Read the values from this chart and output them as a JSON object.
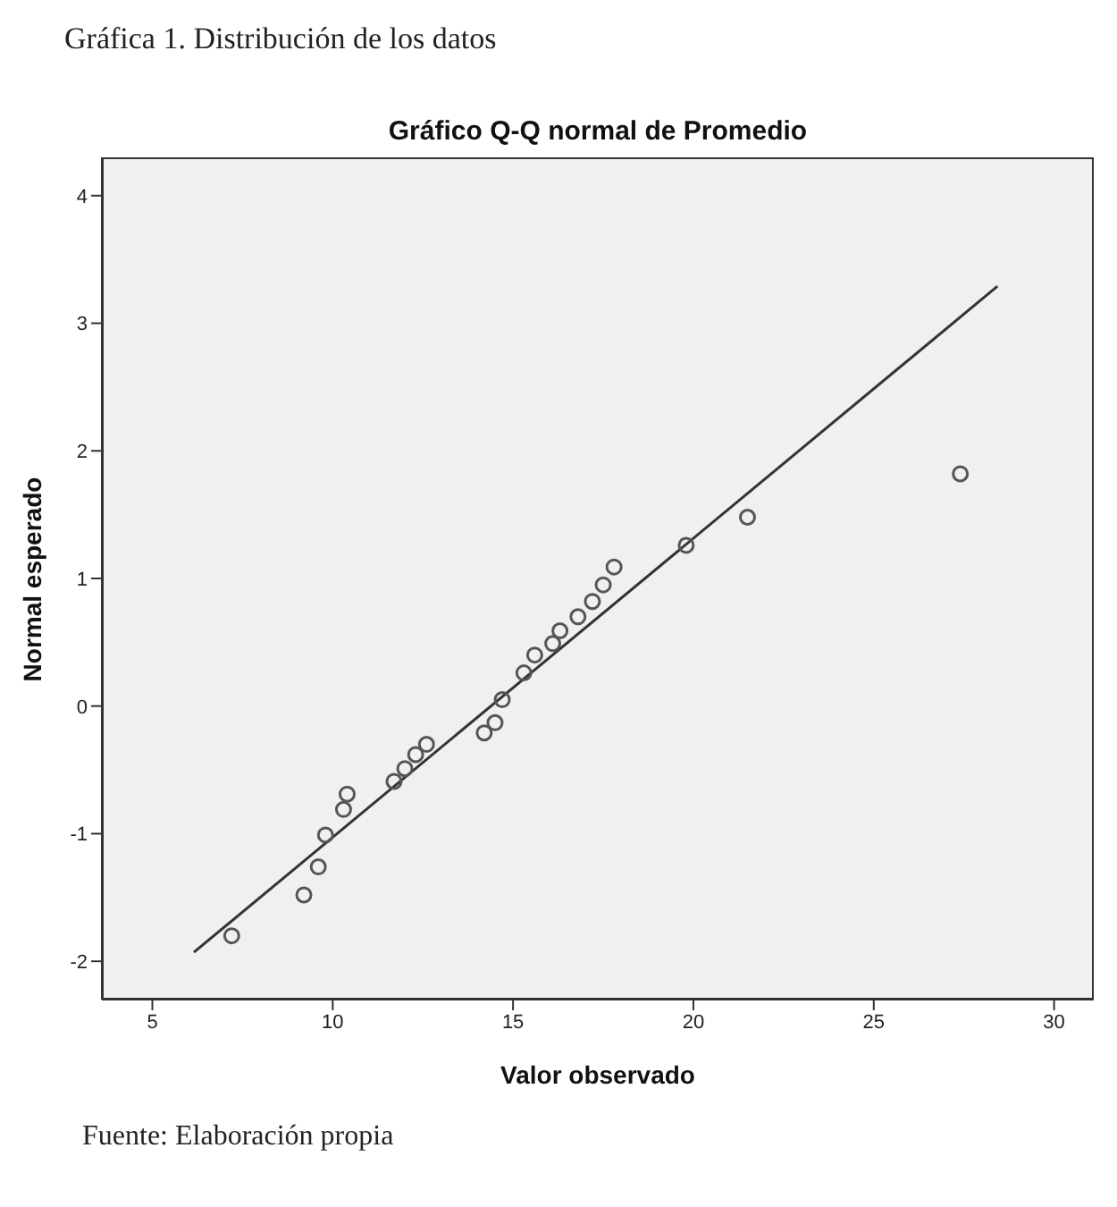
{
  "chart_data": {
    "type": "scatter",
    "title": "Gráfica 1. Distribución de los datos",
    "subtitle": "Gráfico Q-Q normal de Promedio",
    "xlabel": "Valor observado",
    "ylabel": "Normal esperado",
    "series": [
      {
        "color": "#555555",
        "marker": "circle",
        "x": [
          7.2,
          9.2,
          9.6,
          9.8,
          10.3,
          10.4,
          11.7,
          12.0,
          12.3,
          12.6,
          14.2,
          14.5,
          14.7,
          15.3,
          15.6,
          16.1,
          16.3,
          16.8,
          17.2,
          17.5,
          17.8,
          19.8,
          21.5,
          27.4
        ],
        "values": [
          -1.8,
          -1.48,
          -1.26,
          -1.01,
          -0.81,
          -0.69,
          -0.59,
          -0.49,
          -0.38,
          -0.3,
          -0.21,
          -0.13,
          0.05,
          0.26,
          0.4,
          0.49,
          0.59,
          0.7,
          0.82,
          0.95,
          1.09,
          1.26,
          1.48,
          1.82
        ]
      },
      {
        "type": "line",
        "color": "#333333",
        "marker": "none",
        "x": [
          6.15,
          28.43
        ],
        "values": [
          -1.93,
          3.29
        ]
      }
    ],
    "xlim": [
      3.6,
      31.1
    ],
    "xticks": [
      5,
      10,
      15,
      20,
      25,
      30
    ],
    "ylim": [
      -2.3,
      4.3
    ],
    "yticks": [
      -2,
      -1,
      0,
      1,
      2,
      3,
      4
    ],
    "grid": false,
    "legend": false,
    "annotations": [
      "Fuente: Elaboración propia"
    ]
  }
}
